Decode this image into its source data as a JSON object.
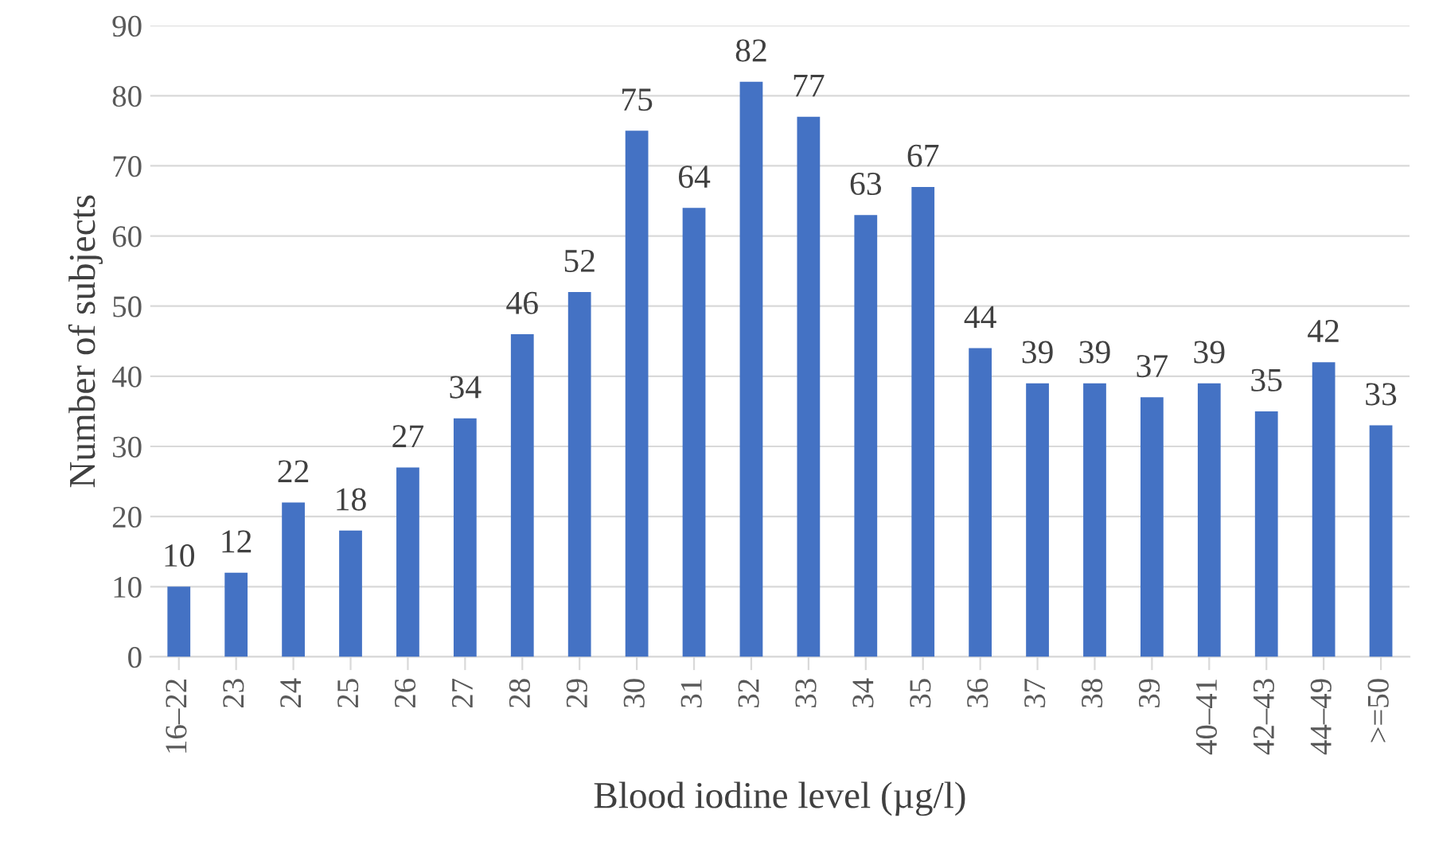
{
  "chart_data": {
    "type": "bar",
    "xlabel": "Blood iodine level (µg/l)",
    "ylabel": "Number of subjects",
    "categories": [
      "16–22",
      "23",
      "24",
      "25",
      "26",
      "27",
      "28",
      "29",
      "30",
      "31",
      "32",
      "33",
      "34",
      "35",
      "36",
      "37",
      "38",
      "39",
      "40–41",
      "42–43",
      "44–49",
      ">=50"
    ],
    "values": [
      10,
      12,
      22,
      18,
      27,
      34,
      46,
      52,
      75,
      64,
      82,
      77,
      63,
      67,
      44,
      39,
      39,
      37,
      39,
      35,
      42,
      33
    ],
    "color": "#4472c4",
    "ylim": [
      0,
      90
    ],
    "yticks": [
      0,
      10,
      20,
      30,
      40,
      50,
      60,
      70,
      80,
      90
    ],
    "grid": "y",
    "data_labels": true
  }
}
